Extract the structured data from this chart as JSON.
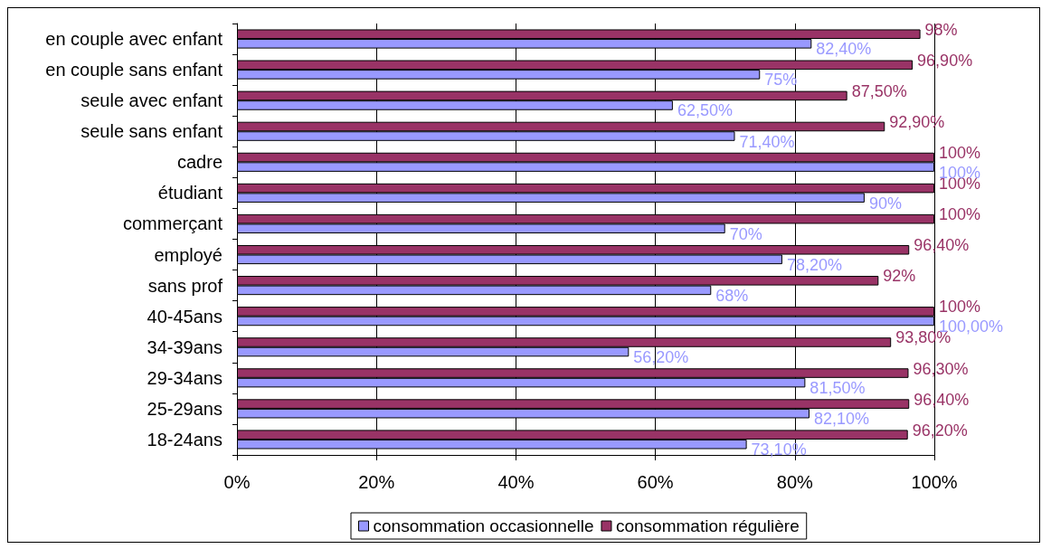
{
  "chart_data": {
    "type": "bar",
    "orientation": "horizontal",
    "categories": [
      "en couple avec enfant",
      "en couple sans enfant",
      "seule avec enfant",
      "seule sans enfant",
      "cadre",
      "étudiant",
      "commerçant",
      "employé",
      "sans prof",
      "40-45ans",
      "34-39ans",
      "29-34ans",
      "25-29ans",
      "18-24ans"
    ],
    "series": [
      {
        "name": "consommation occasionnelle",
        "color": "#9999ff",
        "values": [
          82.4,
          75,
          62.5,
          71.4,
          100,
          90,
          70,
          78.2,
          68,
          100,
          56.2,
          81.5,
          82.1,
          73.1
        ],
        "value_labels": [
          "82,40%",
          "75%",
          "62,50%",
          "71,40%",
          "100%",
          "90%",
          "70%",
          "78,20%",
          "68%",
          "100,00%",
          "56,20%",
          "81,50%",
          "82,10%",
          "73,10%"
        ]
      },
      {
        "name": "consommation régulière",
        "color": "#993366",
        "values": [
          98,
          96.9,
          87.5,
          92.9,
          100,
          100,
          100,
          96.4,
          92,
          100,
          93.8,
          96.3,
          96.4,
          96.2
        ],
        "value_labels": [
          "98%",
          "96,90%",
          "87,50%",
          "92,90%",
          "100%",
          "100%",
          "100%",
          "96,40%",
          "92%",
          "100%",
          "93,80%",
          "96,30%",
          "96,40%",
          "96,20%"
        ]
      }
    ],
    "xlim": [
      0,
      100
    ],
    "xticks": [
      {
        "value": 0,
        "label": "0%"
      },
      {
        "value": 20,
        "label": "20%"
      },
      {
        "value": 40,
        "label": "40%"
      },
      {
        "value": 60,
        "label": "60%"
      },
      {
        "value": 80,
        "label": "80%"
      },
      {
        "value": 100,
        "label": "100%"
      }
    ],
    "grid": "x",
    "legend": "bottom"
  }
}
